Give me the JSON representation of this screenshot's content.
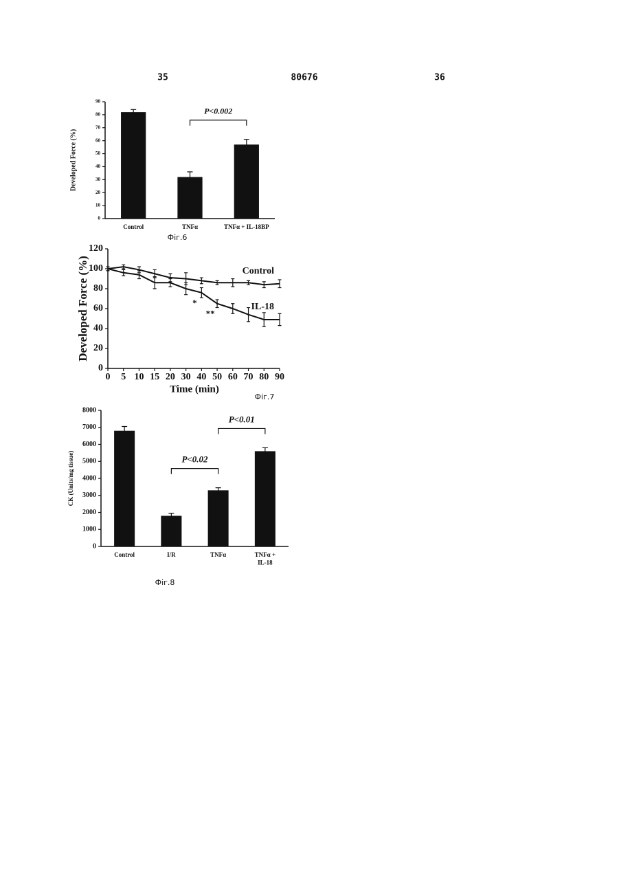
{
  "header": {
    "left": "35",
    "center": "80676",
    "right": "36"
  },
  "chart_data": [
    {
      "type": "bar",
      "y_label": "Developed Force (%)",
      "caption": "Фіг.6",
      "categories": [
        "Control",
        "TNFα",
        "TNFα + IL-18BP"
      ],
      "values": [
        82,
        32,
        57
      ],
      "errors": [
        2,
        4,
        4
      ],
      "color": "#111111",
      "ylim": [
        0,
        90
      ],
      "yticks": [
        0,
        10,
        20,
        30,
        40,
        50,
        60,
        70,
        80,
        90
      ],
      "annotations": [
        {
          "text": "P<0.002",
          "between": [
            "TNFα",
            "TNFα + IL-18BP"
          ]
        }
      ]
    },
    {
      "type": "line",
      "y_label": "Developed Force (%)",
      "x_label": "Time (min)",
      "caption": "Фіг.7",
      "categories": [
        "0",
        "5",
        "10",
        "15",
        "20",
        "30",
        "40",
        "50",
        "60",
        "70",
        "80",
        "90"
      ],
      "series": [
        {
          "name": "Control",
          "color": "#111111",
          "values": [
            100,
            102,
            99,
            95,
            91,
            90,
            88,
            86,
            86,
            86,
            84,
            85
          ],
          "errors": [
            2,
            2,
            3,
            4,
            4,
            6,
            3,
            2,
            4,
            2,
            3,
            4
          ]
        },
        {
          "name": "IL-18",
          "color": "#111111",
          "values": [
            100,
            96,
            94,
            86,
            86,
            80,
            76,
            65,
            60,
            54,
            49,
            49
          ],
          "errors": [
            2,
            3,
            4,
            6,
            4,
            6,
            5,
            4,
            5,
            7,
            7,
            6
          ]
        }
      ],
      "ylim": [
        0,
        120
      ],
      "yticks": [
        0,
        20,
        40,
        60,
        80,
        100,
        120
      ],
      "annotations": [
        {
          "text": "*",
          "at": "40",
          "series": "IL-18"
        },
        {
          "text": "**",
          "at": "50",
          "series": "IL-18"
        }
      ]
    },
    {
      "type": "bar",
      "y_label": "CK (Units/mg tissue)",
      "caption": "Фіг.8",
      "categories": [
        "Control",
        "I/R",
        "TNFα",
        "TNFα + IL-18"
      ],
      "values": [
        6800,
        1800,
        3300,
        5600
      ],
      "errors": [
        250,
        150,
        150,
        200
      ],
      "color": "#111111",
      "ylim": [
        0,
        8000
      ],
      "yticks": [
        0,
        1000,
        2000,
        3000,
        4000,
        5000,
        6000,
        7000,
        8000
      ],
      "annotations": [
        {
          "text": "P<0.02",
          "between": [
            "I/R",
            "TNFα"
          ]
        },
        {
          "text": "P<0.01",
          "between": [
            "TNFα",
            "TNFα + IL-18"
          ]
        }
      ]
    }
  ]
}
